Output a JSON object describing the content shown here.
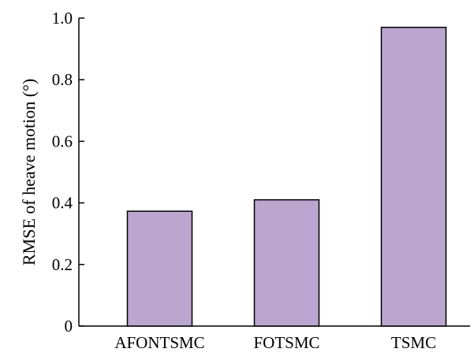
{
  "chart_data": {
    "type": "bar",
    "title": "",
    "xlabel": "",
    "ylabel": "RMSE of heave motion (°)",
    "categories": [
      "AFONTSMC",
      "FOTSMC",
      "TSMC"
    ],
    "values": [
      0.373,
      0.41,
      0.97
    ],
    "ylim": [
      0,
      1.0
    ],
    "yticks": [
      0,
      0.2,
      0.4,
      0.6,
      0.8,
      1.0
    ],
    "ytick_labels": [
      "0",
      "0.2",
      "0.4",
      "0.6",
      "0.8",
      "1.0"
    ],
    "grid": false,
    "bar_color": "#bba6d0",
    "bar_edge_color": "#000000"
  }
}
